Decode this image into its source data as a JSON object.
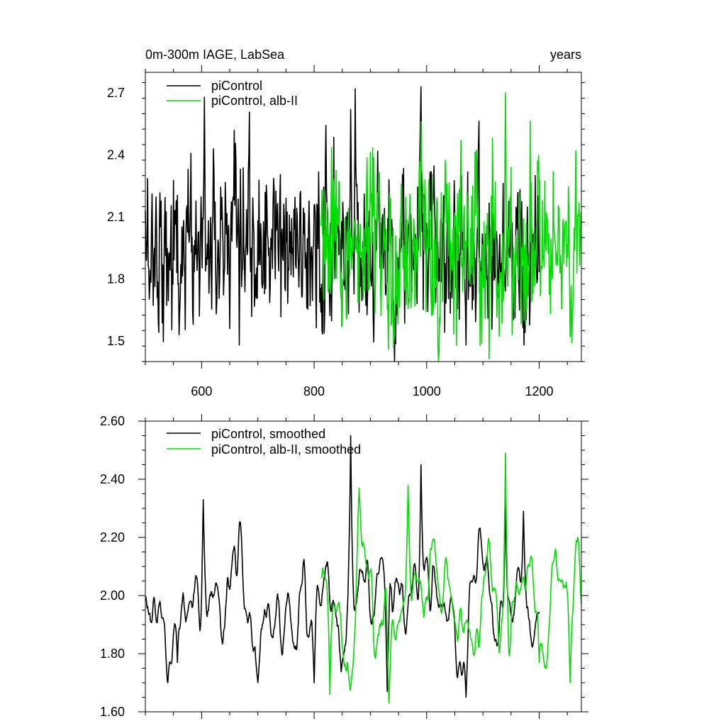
{
  "chart_data": [
    {
      "type": "line",
      "title_left": "0m-300m IAGE, LabSea",
      "title_right": "years",
      "xlim": [
        500,
        1275
      ],
      "ylim": [
        1.4,
        2.8
      ],
      "x_ticks": [
        600,
        800,
        1000,
        1200
      ],
      "x_tick_labels": [
        "600",
        "800",
        "1000",
        "1200"
      ],
      "y_ticks": [
        1.5,
        1.8,
        2.1,
        2.4,
        2.7
      ],
      "y_tick_labels": [
        "1.5",
        "1.8",
        "2.1",
        "2.4",
        "2.7"
      ],
      "legend": "top-left",
      "series": [
        {
          "name": "piControl",
          "color": "#000000",
          "x_start": 500,
          "x_end": 1200,
          "mean": 1.95,
          "std": 0.2,
          "smooth": 0.35,
          "anchors": [
            [
              560,
              1.53
            ],
            [
              605,
              2.68
            ],
            [
              650,
              1.56
            ],
            [
              667,
              1.48
            ],
            [
              812,
              1.64
            ],
            [
              865,
              2.62
            ],
            [
              873,
              2.72
            ],
            [
              990,
              2.73
            ],
            [
              1070,
              1.48
            ]
          ]
        },
        {
          "name": "piControl, alb-II",
          "color": "#00dd00",
          "x_start": 812,
          "x_end": 1275,
          "mean": 1.95,
          "std": 0.22,
          "smooth": 0.3,
          "anchors": [
            [
              932,
              1.46
            ],
            [
              1140,
              2.7
            ],
            [
              1255,
              1.52
            ],
            [
              1265,
              2.42
            ],
            [
              1275,
              2.07
            ]
          ]
        }
      ]
    },
    {
      "type": "line",
      "xlim": [
        500,
        1275
      ],
      "ylim": [
        1.6,
        2.6
      ],
      "x_ticks": [
        600,
        800,
        1000,
        1200
      ],
      "y_ticks": [
        1.6,
        1.8,
        2.0,
        2.2,
        2.4,
        2.6
      ],
      "y_tick_labels": [
        "1.60",
        "1.80",
        "2.00",
        "2.20",
        "2.40",
        "2.60"
      ],
      "legend": "top-left",
      "series": [
        {
          "name": "piControl, smoothed",
          "color": "#000000",
          "x_start": 500,
          "x_end": 1200,
          "mean": 1.98,
          "std": 0.12,
          "smooth": 0.9,
          "anchors": [
            [
              603,
              2.33
            ],
            [
              557,
              1.77
            ],
            [
              800,
              1.7
            ],
            [
              865,
              2.55
            ],
            [
              930,
              1.67
            ],
            [
              990,
              2.45
            ],
            [
              1070,
              1.65
            ],
            [
              1140,
              2.35
            ],
            [
              1172,
              2.29
            ]
          ]
        },
        {
          "name": "piControl, alb-II, smoothed",
          "color": "#00dd00",
          "x_start": 812,
          "x_end": 1275,
          "mean": 1.97,
          "std": 0.13,
          "smooth": 0.9,
          "anchors": [
            [
              828,
              1.66
            ],
            [
              880,
              2.37
            ],
            [
              933,
              1.63
            ],
            [
              967,
              2.38
            ],
            [
              1140,
              2.49
            ],
            [
              1200,
              1.77
            ],
            [
              1255,
              1.7
            ],
            [
              1275,
              1.97
            ]
          ]
        }
      ]
    }
  ]
}
